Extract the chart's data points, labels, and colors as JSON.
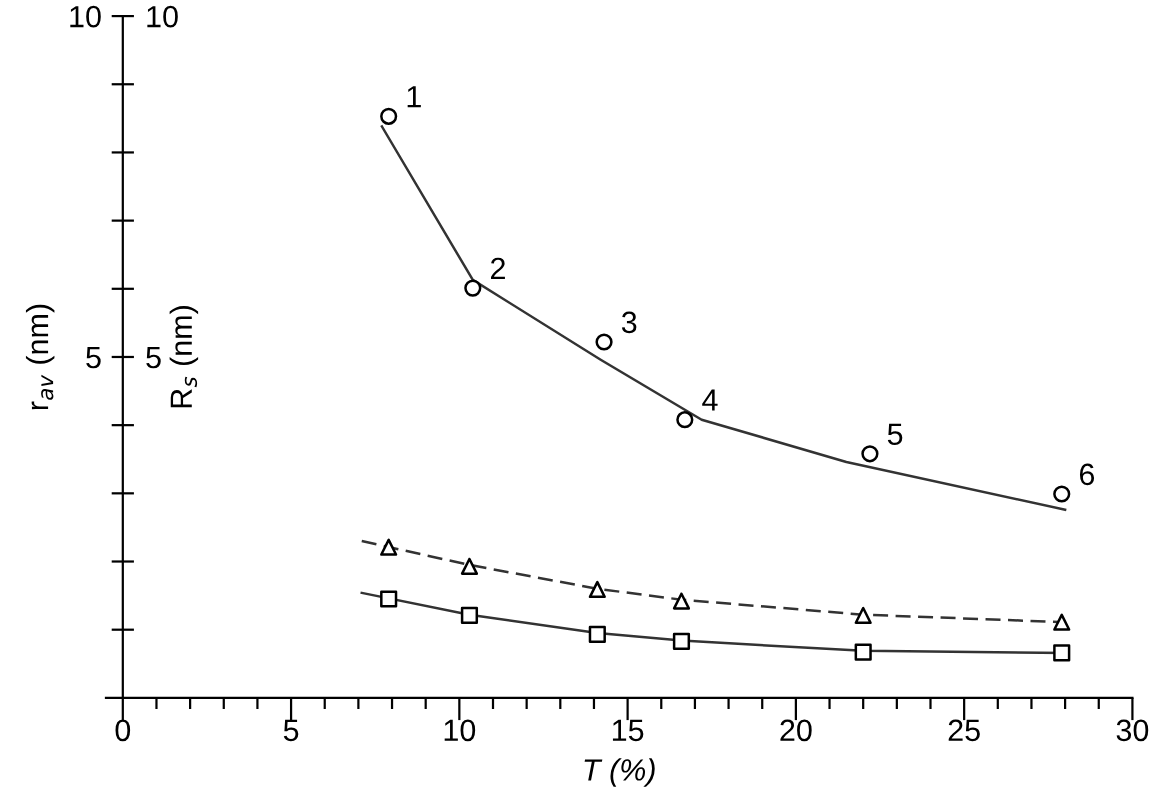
{
  "chart_data": {
    "type": "scatter",
    "xlabel": "T (%)",
    "ylabel": "r$_{av}$ (nm)",
    "y2label": "R$_{s}$ (nm)",
    "xlim": [
      -0.5,
      30
    ],
    "ylim": [
      0,
      10
    ],
    "y2lim": [
      0,
      10
    ],
    "xticks": [
      0,
      {
        "value": 1,
        "label": null
      },
      {
        "value": 2,
        "label": null
      },
      {
        "value": 3,
        "label": null
      },
      {
        "value": 4,
        "label": null
      },
      5,
      {
        "value": 6,
        "label": null
      },
      {
        "value": 7,
        "label": null
      },
      {
        "value": 8,
        "label": null
      },
      {
        "value": 9,
        "label": null
      },
      10,
      {
        "value": 11,
        "label": null
      },
      {
        "value": 12,
        "label": null
      },
      {
        "value": 13,
        "label": null
      },
      {
        "value": 14,
        "label": null
      },
      15,
      {
        "value": 16,
        "label": null
      },
      {
        "value": 17,
        "label": null
      },
      {
        "value": 18,
        "label": null
      },
      {
        "value": 19,
        "label": null
      },
      20,
      {
        "value": 21,
        "label": null
      },
      {
        "value": 22,
        "label": null
      },
      {
        "value": 23,
        "label": null
      },
      {
        "value": 24,
        "label": null
      },
      25,
      {
        "value": 26,
        "label": null
      },
      {
        "value": 27,
        "label": null
      },
      {
        "value": 28,
        "label": null
      },
      {
        "value": 29,
        "label": null
      },
      30
    ],
    "yticks": [
      {
        "value": 1,
        "label": null
      },
      {
        "value": 2,
        "label": null
      },
      {
        "value": 3,
        "label": null
      },
      {
        "value": 4,
        "label": null
      },
      5,
      {
        "value": 6,
        "label": null
      },
      {
        "value": 7,
        "label": null
      },
      {
        "value": 8,
        "label": null
      },
      {
        "value": 9,
        "label": null
      },
      10
    ],
    "y2ticks": [
      5,
      10
    ],
    "grid": false,
    "legend": false,
    "series": [
      {
        "marker": "circle",
        "color": "#000000",
        "x": [
          7.9,
          10.4,
          14.3,
          16.7,
          22.2,
          27.9
        ],
        "values": [
          8.53,
          6.01,
          5.22,
          4.08,
          3.58,
          2.99
        ]
      },
      {
        "type": "line",
        "marker": "none",
        "line_style": "solid",
        "color": "#333333",
        "x": [
          7.7,
          10.4,
          14.2,
          17.2,
          21.5,
          28.0
        ],
        "values": [
          8.38,
          6.13,
          4.96,
          4.08,
          3.46,
          2.76
        ]
      },
      {
        "marker": "triangle",
        "color": "#000000",
        "x": [
          7.9,
          10.3,
          14.1,
          16.6,
          22.0,
          27.9
        ],
        "values": [
          2.21,
          1.93,
          1.59,
          1.42,
          1.21,
          1.11
        ]
      },
      {
        "type": "line",
        "marker": "none",
        "line_style": "dashed",
        "color": "#333333",
        "x": [
          7.1,
          10.3,
          14.1,
          16.6,
          22.0,
          28.0
        ],
        "values": [
          2.3,
          1.95,
          1.6,
          1.44,
          1.22,
          1.11
        ]
      },
      {
        "marker": "square",
        "color": "#000000",
        "x": [
          7.9,
          10.3,
          14.1,
          16.6,
          22.0,
          27.9
        ],
        "values": [
          1.45,
          1.21,
          0.93,
          0.83,
          0.67,
          0.66
        ]
      },
      {
        "type": "line",
        "marker": "none",
        "line_style": "solid",
        "color": "#333333",
        "x": [
          7.1,
          10.3,
          14.1,
          16.6,
          22.0,
          28.0
        ],
        "values": [
          1.54,
          1.22,
          0.95,
          0.84,
          0.69,
          0.66
        ]
      }
    ],
    "annotations": [
      {
        "text": "1",
        "x": 7.9,
        "y": 8.53
      },
      {
        "text": "2",
        "x": 10.4,
        "y": 6.01
      },
      {
        "text": "3",
        "x": 14.3,
        "y": 5.22
      },
      {
        "text": "4",
        "x": 16.7,
        "y": 4.08
      },
      {
        "text": "5",
        "x": 22.2,
        "y": 3.58
      },
      {
        "text": "6",
        "x": 27.9,
        "y": 2.99
      }
    ]
  }
}
